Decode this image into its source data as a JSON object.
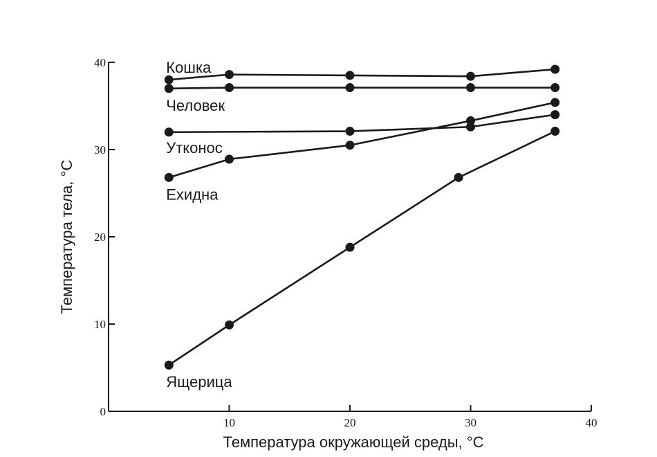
{
  "chart_data": {
    "type": "line",
    "xlabel": "Температура окружающей среды,  °C",
    "ylabel": "Температура тела,  °C",
    "xlim": [
      0,
      40
    ],
    "ylim": [
      0,
      40
    ],
    "x_ticks": [
      10,
      20,
      30,
      40
    ],
    "y_ticks": [
      0,
      10,
      20,
      30,
      40
    ],
    "grid": false,
    "legend": "labels next to lines",
    "series": [
      {
        "name": "Кошка",
        "points": [
          [
            5,
            38.0
          ],
          [
            10,
            38.6
          ],
          [
            20,
            38.5
          ],
          [
            30,
            38.4
          ],
          [
            37,
            39.2
          ]
        ]
      },
      {
        "name": "Человек",
        "points": [
          [
            5,
            37.0
          ],
          [
            10,
            37.1
          ],
          [
            20,
            37.1
          ],
          [
            30,
            37.1
          ],
          [
            37,
            37.1
          ]
        ]
      },
      {
        "name": "Утконос",
        "points": [
          [
            5,
            32.0
          ],
          [
            20,
            32.1
          ],
          [
            30,
            32.6
          ],
          [
            37,
            34.0
          ]
        ]
      },
      {
        "name": "Ехидна",
        "points": [
          [
            5,
            26.8
          ],
          [
            10,
            28.9
          ],
          [
            20,
            30.5
          ],
          [
            30,
            33.3
          ],
          [
            37,
            35.4
          ]
        ]
      },
      {
        "name": "Ящерица",
        "points": [
          [
            5,
            5.3
          ],
          [
            10,
            9.9
          ],
          [
            20,
            18.8
          ],
          [
            29,
            26.8
          ],
          [
            37,
            32.1
          ]
        ]
      }
    ]
  }
}
